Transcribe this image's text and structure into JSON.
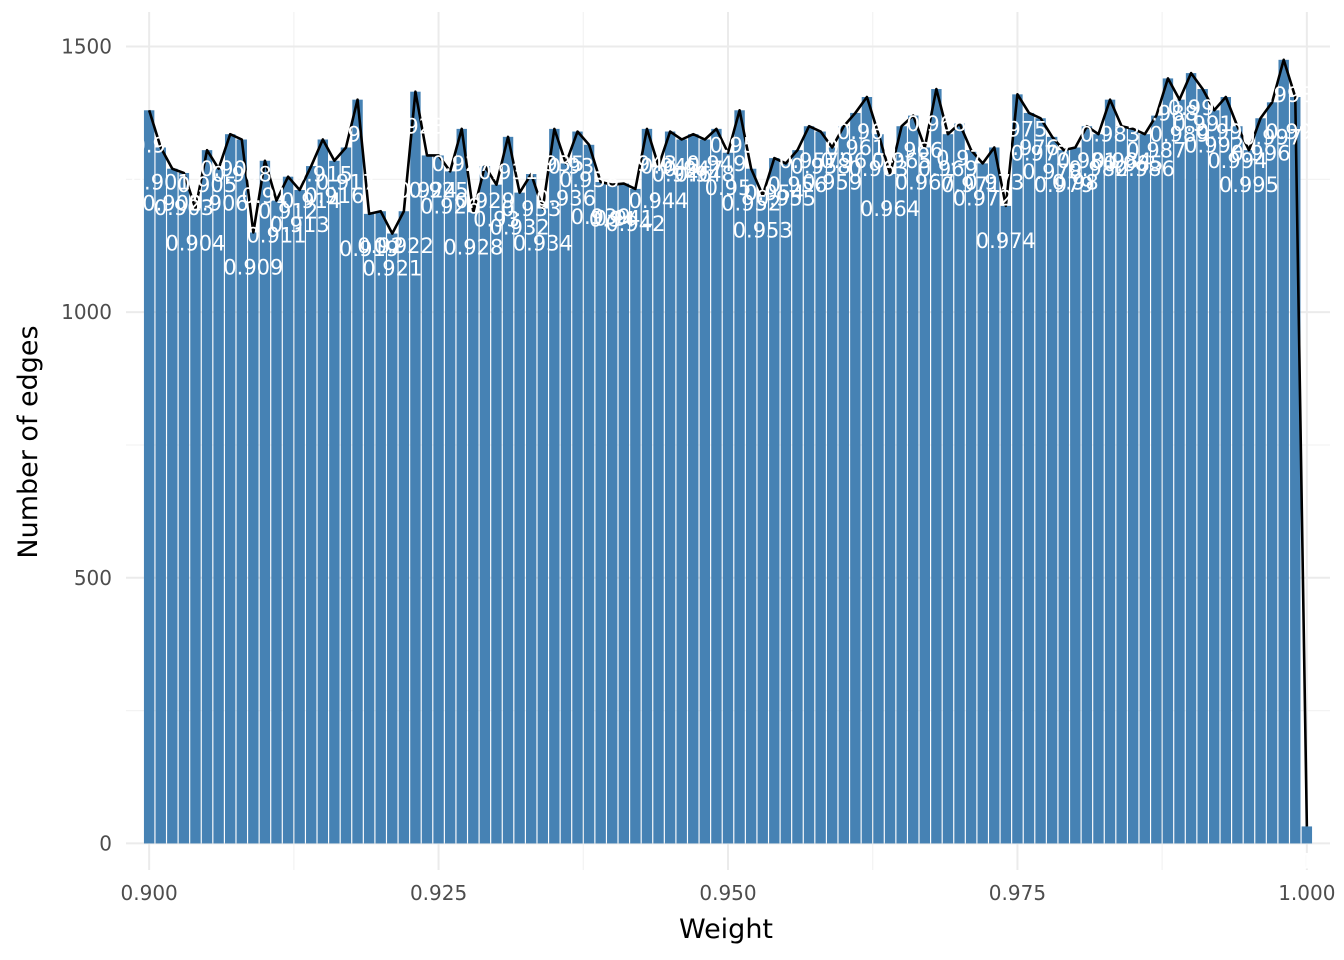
{
  "chart_data": {
    "type": "bar",
    "xlabel": "Weight",
    "ylabel": "Number of edges",
    "xlim": [
      0.898,
      1.002
    ],
    "ylim": [
      -50,
      1565
    ],
    "x_ticks": [
      "0.900",
      "0.925",
      "0.950",
      "0.975",
      "1.000"
    ],
    "x_tick_values": [
      0.9,
      0.925,
      0.95,
      0.975,
      1.0
    ],
    "y_ticks": [
      "0",
      "500",
      "1000",
      "1500"
    ],
    "y_tick_values": [
      0,
      500,
      1000,
      1500
    ],
    "bin_start": 0.9,
    "bin_width": 0.001,
    "bar_color": "#4682b4",
    "line_color": "#000000",
    "label_color": "#ffffff",
    "values": [
      1380,
      1310,
      1270,
      1262,
      1195,
      1305,
      1270,
      1335,
      1325,
      1150,
      1285,
      1210,
      1255,
      1230,
      1275,
      1325,
      1285,
      1310,
      1400,
      1185,
      1190,
      1148,
      1190,
      1415,
      1295,
      1295,
      1265,
      1345,
      1188,
      1275,
      1240,
      1330,
      1225,
      1260,
      1195,
      1345,
      1280,
      1340,
      1315,
      1245,
      1240,
      1242,
      1232,
      1345,
      1275,
      1340,
      1325,
      1335,
      1325,
      1345,
      1300,
      1380,
      1270,
      1220,
      1290,
      1280,
      1305,
      1350,
      1340,
      1310,
      1350,
      1375,
      1405,
      1335,
      1260,
      1350,
      1370,
      1310,
      1420,
      1335,
      1355,
      1305,
      1280,
      1310,
      1200,
      1410,
      1375,
      1365,
      1330,
      1305,
      1310,
      1350,
      1335,
      1400,
      1350,
      1345,
      1335,
      1370,
      1440,
      1400,
      1450,
      1420,
      1380,
      1405,
      1350,
      1305,
      1365,
      1395,
      1475,
      1405,
      32
    ],
    "labels": [
      "0.9",
      "0.901",
      "0.902",
      "0.903",
      "0.904",
      "0.905",
      "0.906",
      "0.907",
      "0.908",
      "0.909",
      "0.91",
      "0.911",
      "0.912",
      "0.913",
      "0.914",
      "0.915",
      "0.916",
      "0.917",
      "0.918",
      "0.919",
      "0.92",
      "0.921",
      "0.922",
      "0.923",
      "0.924",
      "0.925",
      "0.926",
      "0.927",
      "0.928",
      "0.929",
      "0.93",
      "0.931",
      "0.932",
      "0.933",
      "0.934",
      "0.935",
      "0.936",
      "0.937",
      "0.938",
      "0.939",
      "0.94",
      "0.941",
      "0.942",
      "0.943",
      "0.944",
      "0.945",
      "0.946",
      "0.947",
      "0.948",
      "0.949",
      "0.95",
      "0.951",
      "0.952",
      "0.953",
      "0.954",
      "0.955",
      "0.956",
      "0.957",
      "0.958",
      "0.959",
      "0.96",
      "0.961",
      "0.962",
      "0.963",
      "0.964",
      "0.965",
      "0.966",
      "0.967",
      "0.968",
      "0.969",
      "0.97",
      "0.971",
      "0.972",
      "0.973",
      "0.974",
      "0.975",
      "0.976",
      "0.977",
      "0.978",
      "0.979",
      "0.98",
      "0.981",
      "0.982",
      "0.983",
      "0.984",
      "0.985",
      "0.986",
      "0.987",
      "0.988",
      "0.989",
      "0.99",
      "0.991",
      "0.992",
      "0.993",
      "0.994",
      "0.995",
      "0.996",
      "0.997",
      "0.998",
      "0.999",
      "1"
    ]
  }
}
